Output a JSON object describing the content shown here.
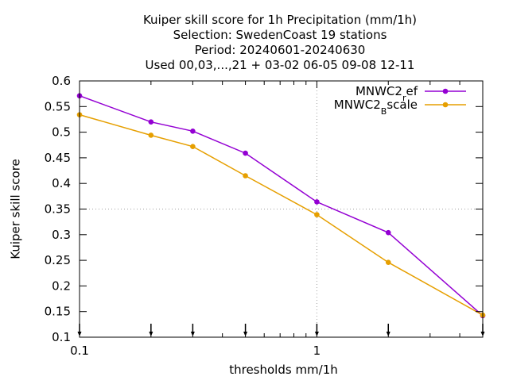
{
  "chart_data": {
    "type": "line",
    "title_lines": [
      "Kuiper skill score  for 1h Precipitation (mm/1h)",
      "Selection: SwedenCoast     19 stations",
      "Period: 20240601-20240630",
      "Used 00,03,...,21 + 03-02 06-05 09-08 12-11"
    ],
    "xlabel": "thresholds mm/1h",
    "ylabel": "Kuiper skill score",
    "xscale": "log",
    "xlim": [
      0.1,
      5
    ],
    "ylim": [
      0.1,
      0.6
    ],
    "x_tick_labels": [
      {
        "value": 0.1,
        "label": "0.1"
      },
      {
        "value": 1,
        "label": "1"
      }
    ],
    "y_ticks": [
      0.1,
      0.15,
      0.2,
      0.25,
      0.3,
      0.35,
      0.4,
      0.45,
      0.5,
      0.55,
      0.6
    ],
    "y_tick_labels": [
      "0.1",
      "0.15",
      "0.2",
      "0.25",
      "0.3",
      "0.35",
      "0.4",
      "0.45",
      "0.5",
      "0.55",
      "0.6"
    ],
    "grid": "dotted, at x = 1 and y = 0.35",
    "legend_position": "top-right",
    "threshold_markers": [
      0.1,
      0.2,
      0.3,
      0.5,
      1,
      2,
      5
    ],
    "x": [
      0.1,
      0.2,
      0.3,
      0.5,
      1,
      2,
      5
    ],
    "series": [
      {
        "name": "MNWC2_ref",
        "legend_main": "MNWC2",
        "legend_sub": "r",
        "legend_rest": "ef",
        "color": "#9400d3",
        "values": [
          0.571,
          0.52,
          0.502,
          0.459,
          0.364,
          0.304,
          0.142
        ]
      },
      {
        "name": "MNWC2_Bscale",
        "legend_main": "MNWC2",
        "legend_sub": "B",
        "legend_rest": "scale",
        "color": "#e69f00",
        "values": [
          0.534,
          0.494,
          0.472,
          0.415,
          0.339,
          0.246,
          0.143
        ]
      }
    ]
  }
}
